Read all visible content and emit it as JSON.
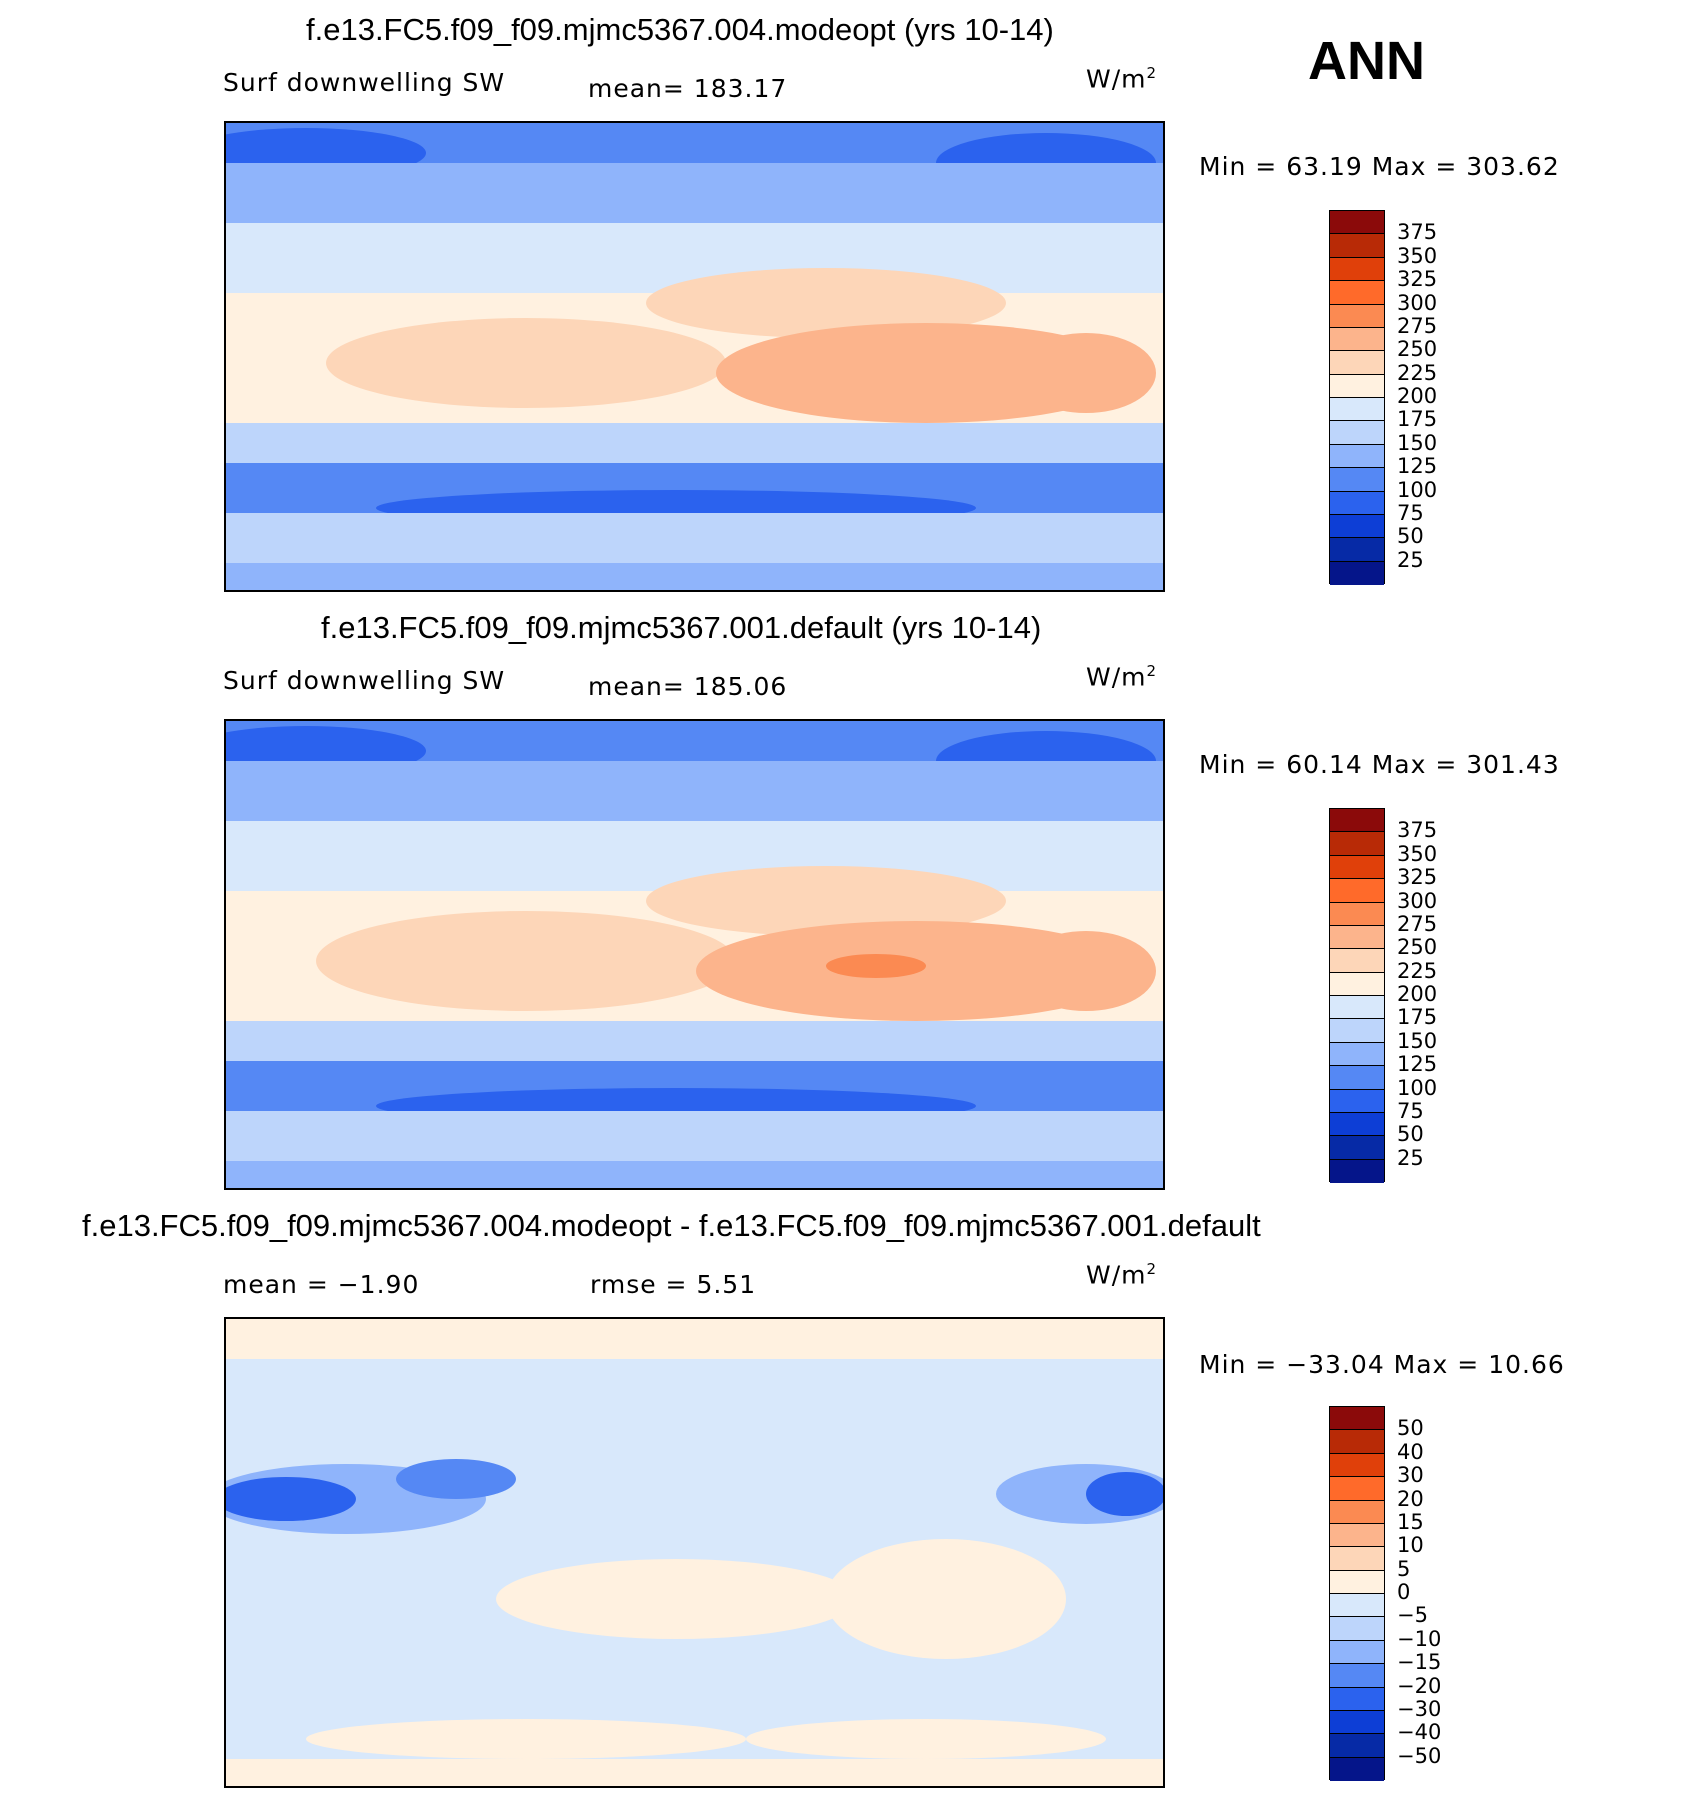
{
  "season_label": "ANN",
  "units_base": "W/m",
  "units_exp": "2",
  "panels": [
    {
      "title": "f.e13.FC5.f09_f09.mjmc5367.004.modeopt (yrs 10-14)",
      "variable": "Surf downwelling SW",
      "stat": "mean=  183.17",
      "minmax": "Min =    63.19  Max  =  303.62",
      "colorbar": {
        "labels": [
          "375",
          "350",
          "325",
          "300",
          "275",
          "250",
          "225",
          "200",
          "175",
          "150",
          "125",
          "100",
          "75",
          "50",
          "25"
        ],
        "colors": [
          "#8b0a0a",
          "#b82a06",
          "#e0400a",
          "#ff6a2a",
          "#fb8a52",
          "#fcb48c",
          "#fdd6b8",
          "#fff1e0",
          "#d8e8fb",
          "#bdd5fb",
          "#8fb4fb",
          "#5588f4",
          "#2b62ee",
          "#0d3ed6",
          "#062aa6",
          "#05158a"
        ]
      }
    },
    {
      "title": "f.e13.FC5.f09_f09.mjmc5367.001.default (yrs 10-14)",
      "variable": "Surf downwelling SW",
      "stat": "mean=  185.06",
      "minmax": "Min =    60.14  Max  =  301.43",
      "colorbar": {
        "labels": [
          "375",
          "350",
          "325",
          "300",
          "275",
          "250",
          "225",
          "200",
          "175",
          "150",
          "125",
          "100",
          "75",
          "50",
          "25"
        ],
        "colors": [
          "#8b0a0a",
          "#b82a06",
          "#e0400a",
          "#ff6a2a",
          "#fb8a52",
          "#fcb48c",
          "#fdd6b8",
          "#fff1e0",
          "#d8e8fb",
          "#bdd5fb",
          "#8fb4fb",
          "#5588f4",
          "#2b62ee",
          "#0d3ed6",
          "#062aa6",
          "#05158a"
        ]
      }
    },
    {
      "title": "f.e13.FC5.f09_f09.mjmc5367.004.modeopt - f.e13.FC5.f09_f09.mjmc5367.001.default",
      "variable": "mean =   −1.90",
      "stat": "rmse =     5.51",
      "minmax": "Min = −33.04  Max  =    10.66",
      "colorbar": {
        "labels": [
          "50",
          "40",
          "30",
          "20",
          "15",
          "10",
          "5",
          "0",
          "−5",
          "−10",
          "−15",
          "−20",
          "−30",
          "−40",
          "−50"
        ],
        "colors": [
          "#8b0a0a",
          "#b82a06",
          "#e0400a",
          "#ff6a2a",
          "#fb8a52",
          "#fcb48c",
          "#fdd6b8",
          "#fff1e0",
          "#d8e8fb",
          "#bdd5fb",
          "#8fb4fb",
          "#5588f4",
          "#2b62ee",
          "#0d3ed6",
          "#062aa6",
          "#05158a"
        ]
      }
    }
  ]
}
